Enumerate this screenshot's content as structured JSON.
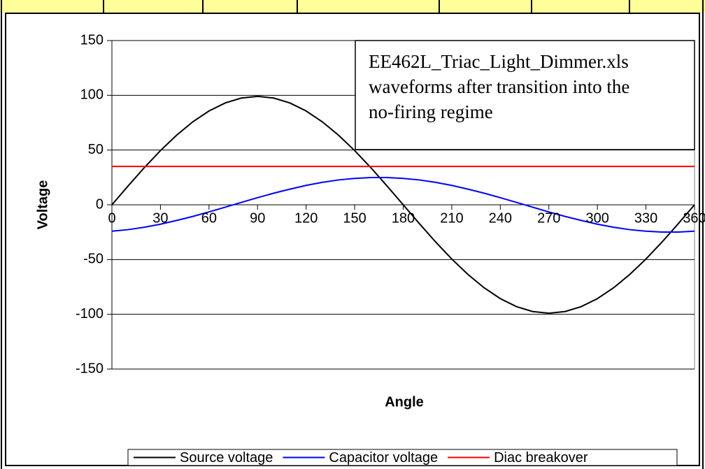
{
  "chart_data": {
    "type": "line",
    "annotation": [
      "EE462L_Triac_Light_Dimmer.xls",
      "waveforms after transition into the",
      "no-firing regime"
    ],
    "x_label": "Angle",
    "y_label": "Voltage",
    "x": [
      0,
      10,
      20,
      30,
      40,
      50,
      60,
      70,
      80,
      90,
      100,
      110,
      120,
      130,
      140,
      150,
      160,
      170,
      180,
      190,
      200,
      210,
      220,
      230,
      240,
      250,
      260,
      270,
      280,
      290,
      300,
      310,
      320,
      330,
      340,
      350,
      360
    ],
    "series": [
      {
        "name": "Source voltage",
        "color": "#000000",
        "values": [
          0,
          17.2,
          33.9,
          49.5,
          63.6,
          75.8,
          85.7,
          93.0,
          97.5,
          99,
          97.5,
          93.0,
          85.7,
          75.8,
          63.6,
          49.5,
          33.9,
          17.2,
          0,
          -17.2,
          -33.9,
          -49.5,
          -63.6,
          -75.8,
          -85.7,
          -93.0,
          -97.5,
          -99,
          -97.5,
          -93.0,
          -85.7,
          -75.8,
          -63.6,
          -49.5,
          -33.9,
          -17.2,
          0
        ]
      },
      {
        "name": "Capacitor voltage",
        "color": "#0000ff",
        "values": [
          -24.1,
          -22.7,
          -20.5,
          -17.7,
          -14.3,
          -10.6,
          -6.5,
          -2.2,
          2.2,
          6.5,
          10.6,
          14.3,
          17.7,
          20.5,
          22.7,
          24.1,
          24.9,
          24.9,
          24.1,
          22.7,
          20.5,
          17.7,
          14.3,
          10.6,
          6.5,
          2.2,
          -2.2,
          -6.5,
          -10.6,
          -14.3,
          -17.7,
          -20.5,
          -22.7,
          -24.1,
          -24.9,
          -24.9,
          -24.1
        ]
      },
      {
        "name": "Diac breakover",
        "color": "#ff0000",
        "values": [
          35,
          35,
          35,
          35,
          35,
          35,
          35,
          35,
          35,
          35,
          35,
          35,
          35,
          35,
          35,
          35,
          35,
          35,
          35,
          35,
          35,
          35,
          35,
          35,
          35,
          35,
          35,
          35,
          35,
          35,
          35,
          35,
          35,
          35,
          35,
          35,
          35
        ]
      }
    ],
    "xlim": [
      0,
      360
    ],
    "xticks": [
      0,
      30,
      60,
      90,
      120,
      150,
      180,
      210,
      240,
      270,
      300,
      330,
      360
    ],
    "ylim": [
      -150,
      150
    ],
    "yticks": [
      -150,
      -100,
      -50,
      0,
      50,
      100,
      150
    ],
    "grid": true,
    "legend": "bottom"
  }
}
